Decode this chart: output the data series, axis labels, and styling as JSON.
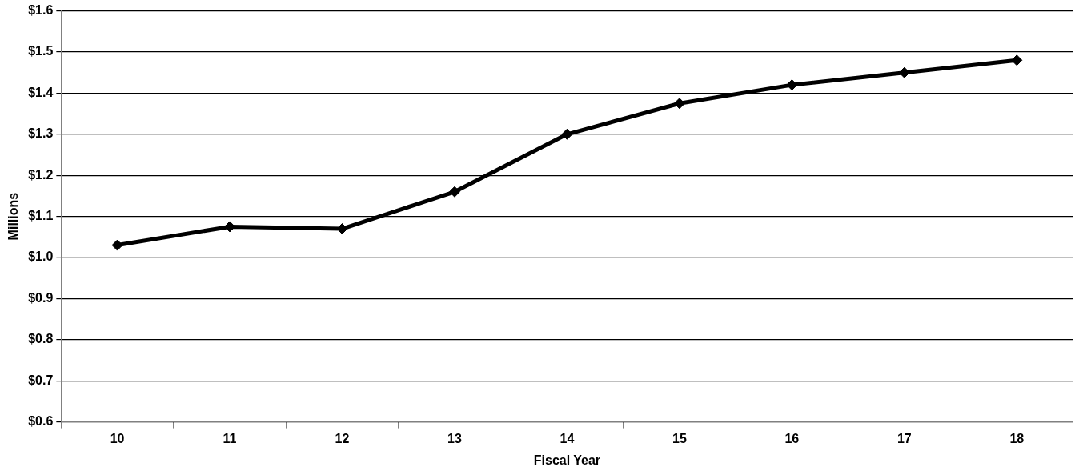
{
  "chart_data": {
    "type": "line",
    "xlabel": "Fiscal Year",
    "ylabel": "Millions",
    "categories": [
      "10",
      "11",
      "12",
      "13",
      "14",
      "15",
      "16",
      "17",
      "18"
    ],
    "series": [
      {
        "color": "#000000",
        "values": [
          1.03,
          1.075,
          1.07,
          1.16,
          1.3,
          1.375,
          1.42,
          1.45,
          1.48
        ]
      }
    ],
    "ylim": [
      0.6,
      1.6
    ],
    "yticks": [
      {
        "value": 0.6,
        "label": "$0.6"
      },
      {
        "value": 0.7,
        "label": "$0.7"
      },
      {
        "value": 0.8,
        "label": "$0.8"
      },
      {
        "value": 0.9,
        "label": "$0.9"
      },
      {
        "value": 1.0,
        "label": "$1.0"
      },
      {
        "value": 1.1,
        "label": "$1.1"
      },
      {
        "value": 1.2,
        "label": "$1.2"
      },
      {
        "value": 1.3,
        "label": "$1.3"
      },
      {
        "value": 1.4,
        "label": "$1.4"
      },
      {
        "value": 1.5,
        "label": "$1.5"
      },
      {
        "value": 1.6,
        "label": "$1.6"
      }
    ],
    "grid": "y",
    "legend": false,
    "marker": "diamond",
    "line_style": "solid"
  }
}
